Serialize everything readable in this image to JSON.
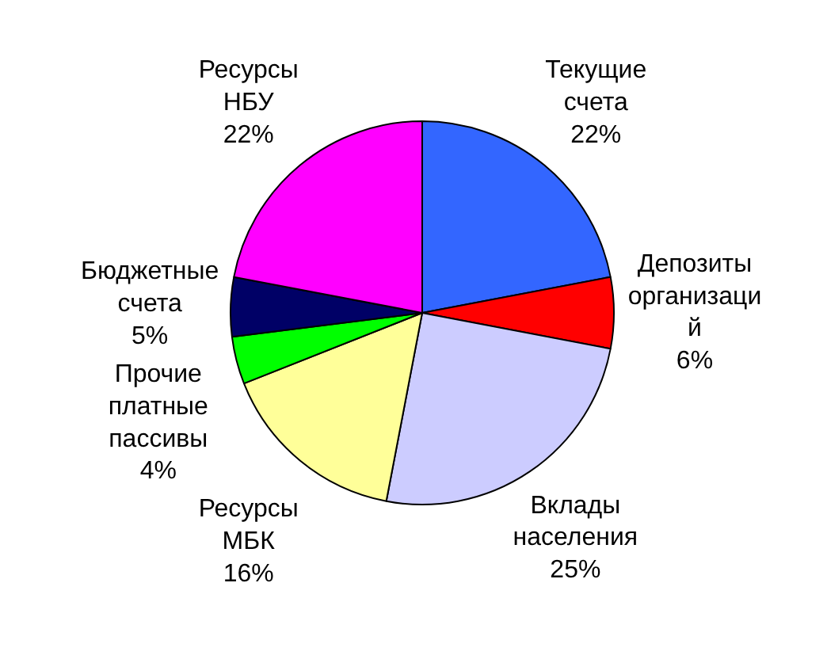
{
  "chart_data": {
    "type": "pie",
    "categories": [
      "Текущие\nсчета",
      "Депозиты\nорганизаци\nй",
      "Вклады\nнаселения",
      "Ресурсы\nМБК",
      "Прочие\nплатные\nпассивы",
      "Бюджетные\nсчета",
      "Ресурсы\nНБУ"
    ],
    "values": [
      22,
      6,
      25,
      16,
      4,
      5,
      22
    ],
    "value_labels": [
      "22%",
      "6%",
      "25%",
      "16%",
      "4%",
      "5%",
      "22%"
    ],
    "colors": [
      "#3366ff",
      "#ff0000",
      "#ccccff",
      "#ffff99",
      "#00ff00",
      "#000066",
      "#ff00ff"
    ]
  }
}
